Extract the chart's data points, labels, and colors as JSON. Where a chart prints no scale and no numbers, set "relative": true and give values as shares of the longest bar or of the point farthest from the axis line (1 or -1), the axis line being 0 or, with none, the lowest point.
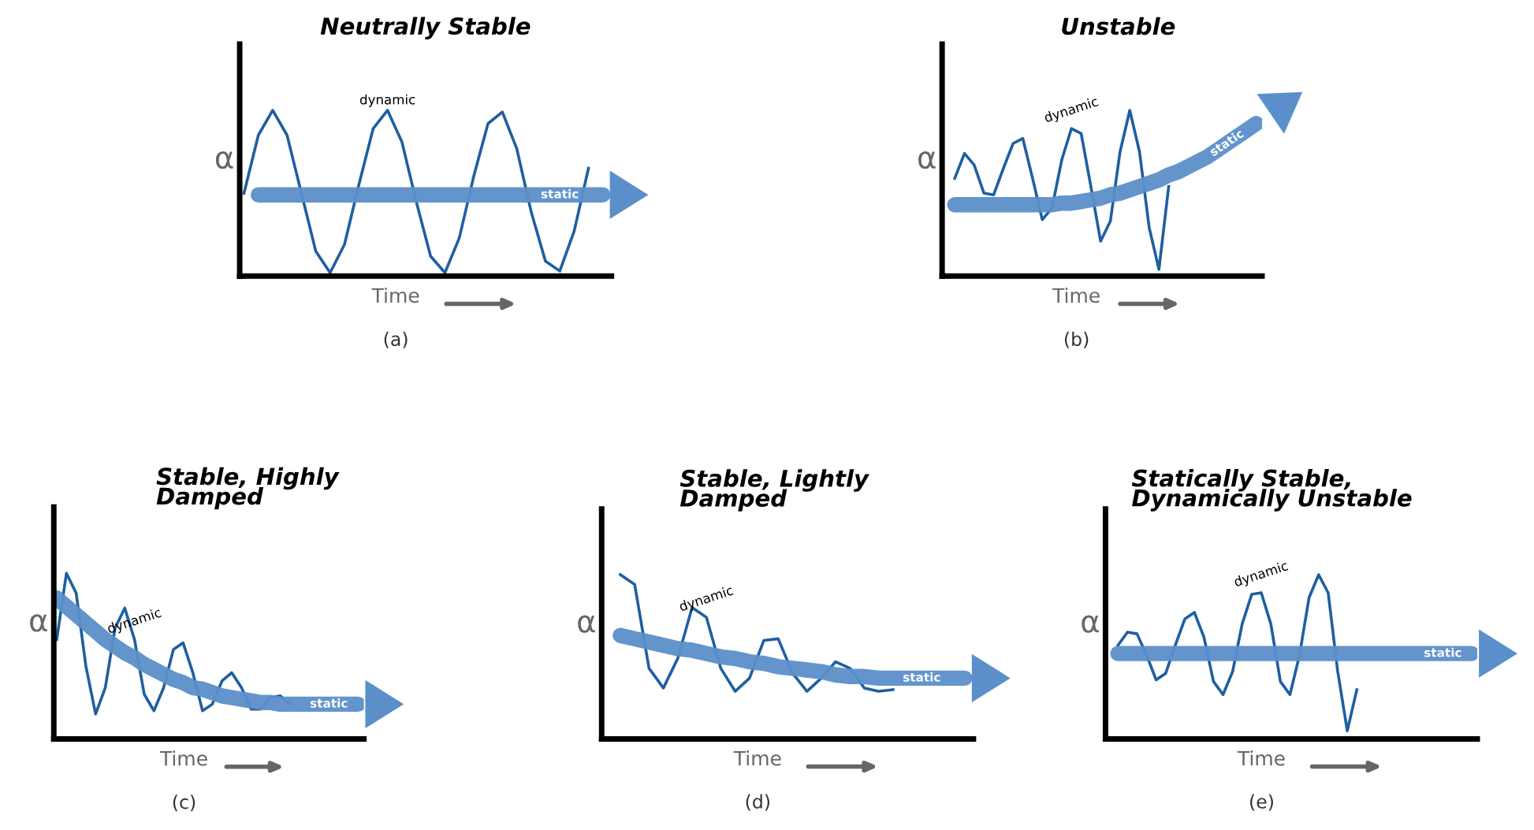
{
  "chart_data": [
    {
      "type": "line",
      "relative": true,
      "title": "Neutrally Stable",
      "xlabel": "Time",
      "ylabel": "α",
      "line_style": "solid",
      "marker": "none",
      "categories": [
        null,
        null,
        null,
        null,
        null,
        null,
        null,
        null,
        null,
        null,
        null,
        null,
        null,
        null,
        null,
        null,
        null,
        null,
        null,
        null,
        null,
        null,
        null,
        null,
        null,
        null
      ],
      "series": [
        {
          "name": "dynamic",
          "color": "#1f5fa0",
          "values": [
            0.5,
            0.85,
            1.0,
            0.85,
            0.5,
            0.15,
            0.02,
            0.19,
            0.55,
            0.89,
            1.0,
            0.81,
            0.45,
            0.12,
            0.02,
            0.23,
            0.6,
            0.92,
            0.99,
            0.77,
            0.39,
            0.09,
            0.03,
            0.27,
            0.65,
            null
          ]
        },
        {
          "name": "static",
          "color": "#5b8fc9",
          "values": [
            null,
            0.49,
            0.49,
            0.49,
            0.49,
            0.49,
            0.49,
            0.49,
            0.49,
            0.49,
            0.49,
            0.49,
            0.49,
            0.49,
            0.49,
            0.49,
            0.49,
            0.49,
            0.49,
            0.49,
            0.49,
            0.49,
            0.49,
            0.49,
            0.49,
            0.49
          ]
        }
      ],
      "annotations": [
        "(a)"
      ]
    },
    {
      "type": "line",
      "relative": true,
      "title": "Unstable",
      "xlabel": "Time",
      "ylabel": "α",
      "line_style": "solid",
      "marker": "none",
      "categories": [
        null,
        null,
        null,
        null,
        null,
        null,
        null,
        null,
        null,
        null,
        null,
        null,
        null,
        null,
        null,
        null,
        null,
        null,
        null,
        null,
        null,
        null,
        null,
        null,
        null,
        null,
        null,
        null,
        null,
        null,
        null,
        null,
        null
      ],
      "series": [
        {
          "name": "dynamic",
          "color": "#1f5fa0",
          "values": [
            null,
            0.59,
            0.74,
            0.67,
            0.5,
            0.49,
            0.65,
            0.8,
            0.83,
            0.59,
            0.34,
            0.41,
            0.7,
            0.89,
            0.86,
            0.54,
            0.21,
            0.33,
            0.75,
            1.0,
            0.75,
            0.29,
            0.04,
            0.54,
            null,
            null,
            null,
            null,
            null,
            null,
            null,
            null,
            null
          ]
        },
        {
          "name": "static",
          "color": "#5b8fc9",
          "values": [
            null,
            0.43,
            0.43,
            0.43,
            0.43,
            0.43,
            0.43,
            0.43,
            0.43,
            0.43,
            0.43,
            0.43,
            0.44,
            0.44,
            0.45,
            0.46,
            0.47,
            0.49,
            0.5,
            0.52,
            0.54,
            0.56,
            0.58,
            0.61,
            0.63,
            0.66,
            0.69,
            0.72,
            0.76,
            0.8,
            0.84,
            0.88,
            0.92
          ]
        }
      ],
      "annotations": [
        "(b)"
      ]
    },
    {
      "type": "line",
      "relative": true,
      "title": "Stable, Highly\nDamped",
      "xlabel": "Time",
      "ylabel": "α",
      "line_style": "solid",
      "marker": "none",
      "categories": [
        null,
        null,
        null,
        null,
        null,
        null,
        null,
        null,
        null,
        null,
        null,
        null,
        null,
        null,
        null,
        null,
        null,
        null,
        null,
        null,
        null,
        null,
        null,
        null,
        null,
        null,
        null,
        null,
        null,
        null,
        null,
        null
      ],
      "series": [
        {
          "name": "dynamic",
          "color": "#1f5fa0",
          "values": [
            0.6,
            1.0,
            0.88,
            0.44,
            0.15,
            0.31,
            0.67,
            0.79,
            0.6,
            0.27,
            0.17,
            0.31,
            0.54,
            0.58,
            0.4,
            0.17,
            0.21,
            0.35,
            0.4,
            0.31,
            0.18,
            0.18,
            0.25,
            0.26,
            0.21,
            null,
            null,
            null,
            null,
            null,
            null,
            null
          ]
        },
        {
          "name": "static",
          "color": "#5b8fc9",
          "values": [
            0.85,
            0.8,
            0.75,
            0.7,
            0.65,
            0.6,
            0.56,
            0.52,
            0.49,
            0.45,
            0.42,
            0.39,
            0.36,
            0.34,
            0.31,
            0.3,
            0.28,
            0.26,
            0.25,
            0.24,
            0.23,
            0.22,
            0.22,
            0.21,
            0.21,
            0.21,
            0.21,
            0.21,
            0.21,
            0.21,
            0.21,
            0.21
          ]
        }
      ],
      "annotations": [
        "(c)"
      ]
    },
    {
      "type": "line",
      "relative": true,
      "title": "Stable, Lightly\nDamped",
      "xlabel": "Time",
      "ylabel": "α",
      "line_style": "solid",
      "marker": "none",
      "categories": [
        null,
        null,
        null,
        null,
        null,
        null,
        null,
        null,
        null,
        null,
        null,
        null,
        null,
        null,
        null,
        null,
        null,
        null,
        null,
        null,
        null,
        null,
        null,
        null,
        null,
        null
      ],
      "series": [
        {
          "name": "dynamic",
          "color": "#1f5fa0",
          "values": [
            null,
            1.0,
            0.94,
            0.43,
            0.31,
            0.49,
            0.8,
            0.74,
            0.43,
            0.29,
            0.37,
            0.6,
            0.61,
            0.4,
            0.29,
            0.37,
            0.47,
            0.43,
            0.31,
            0.29,
            0.3,
            null,
            null,
            null,
            null,
            null
          ]
        },
        {
          "name": "static",
          "color": "#5b8fc9",
          "values": [
            null,
            0.63,
            0.61,
            0.59,
            0.57,
            0.55,
            0.54,
            0.52,
            0.5,
            0.49,
            0.47,
            0.46,
            0.44,
            0.43,
            0.42,
            0.41,
            0.39,
            0.38,
            0.38,
            0.37,
            0.37,
            0.37,
            0.37,
            0.37,
            0.37,
            0.37
          ]
        }
      ],
      "annotations": [
        "(d)"
      ]
    },
    {
      "type": "line",
      "relative": true,
      "title": "Statically Stable,\nDynamically Unstable",
      "xlabel": "Time",
      "ylabel": "α",
      "line_style": "solid",
      "marker": "none",
      "categories": [
        null,
        null,
        null,
        null,
        null,
        null,
        null,
        null,
        null,
        null,
        null,
        null,
        null,
        null,
        null,
        null,
        null,
        null,
        null,
        null,
        null,
        null,
        null,
        null,
        null,
        null,
        null,
        null,
        null,
        null,
        null,
        null,
        null,
        null,
        null,
        null,
        null,
        null,
        null
      ],
      "series": [
        {
          "name": "dynamic",
          "color": "#1f5fa0",
          "values": [
            null,
            0.57,
            0.65,
            0.64,
            0.51,
            0.36,
            0.4,
            0.57,
            0.73,
            0.77,
            0.62,
            0.35,
            0.27,
            0.41,
            0.7,
            0.88,
            0.89,
            0.7,
            0.35,
            0.27,
            0.51,
            0.86,
            1.0,
            0.89,
            0.41,
            0.05,
            0.3,
            null,
            null,
            null,
            null,
            null,
            null,
            null,
            null,
            null,
            null,
            null,
            null
          ]
        },
        {
          "name": "static",
          "color": "#5b8fc9",
          "values": [
            null,
            0.52,
            0.52,
            0.52,
            0.52,
            0.52,
            0.52,
            0.52,
            0.52,
            0.52,
            0.52,
            0.52,
            0.52,
            0.52,
            0.52,
            0.52,
            0.52,
            0.52,
            0.52,
            0.52,
            0.52,
            0.52,
            0.52,
            0.52,
            0.52,
            0.52,
            0.52,
            0.52,
            0.52,
            0.52,
            0.52,
            0.52,
            0.52,
            0.52,
            0.52,
            0.52,
            0.52,
            0.52,
            0.52
          ]
        }
      ],
      "annotations": [
        "(e)"
      ]
    }
  ]
}
